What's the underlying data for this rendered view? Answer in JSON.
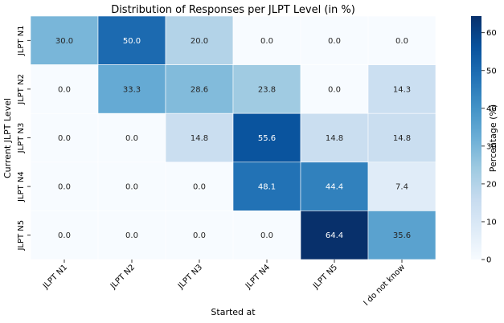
{
  "chart_data": {
    "type": "heatmap",
    "title": "Distribution of Responses per JLPT Level (in %)",
    "xlabel": "Started at",
    "ylabel": "Current JLPT Level",
    "x_categories": [
      "JLPT N1",
      "JLPT N2",
      "JLPT N3",
      "JLPT N4",
      "JLPT N5",
      "I do not know"
    ],
    "y_categories": [
      "JLPT N1",
      "JLPT N2",
      "JLPT N3",
      "JLPT N4",
      "JLPT N5"
    ],
    "values": [
      [
        30.0,
        50.0,
        20.0,
        0.0,
        0.0,
        0.0
      ],
      [
        0.0,
        33.3,
        28.6,
        23.8,
        0.0,
        14.3
      ],
      [
        0.0,
        0.0,
        14.8,
        55.6,
        14.8,
        14.8
      ],
      [
        0.0,
        0.0,
        0.0,
        48.1,
        44.4,
        7.4
      ],
      [
        0.0,
        0.0,
        0.0,
        0.0,
        64.4,
        35.6
      ]
    ],
    "colorbar": {
      "label": "Percentage (%)",
      "ticks": [
        0,
        10,
        20,
        30,
        40,
        50,
        60
      ],
      "range": [
        0,
        64.4
      ],
      "colormap": "Blues"
    }
  }
}
